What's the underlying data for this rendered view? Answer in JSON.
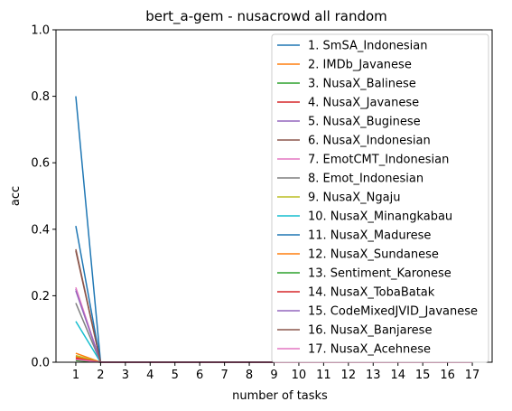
{
  "chart_data": {
    "type": "line",
    "title": "bert_a-gem - nusacrowd all random",
    "xlabel": "number of tasks",
    "ylabel": "acc",
    "x": [
      1,
      2,
      3,
      4,
      5,
      6,
      7,
      8,
      9,
      10,
      11,
      12,
      13,
      14,
      15,
      16,
      17
    ],
    "xlim": [
      0.2,
      17.8
    ],
    "ylim": [
      0,
      1
    ],
    "yticks": [
      "0.0",
      "0.2",
      "0.4",
      "0.6",
      "0.8",
      "1.0"
    ],
    "xticks": [
      "1",
      "2",
      "3",
      "4",
      "5",
      "6",
      "7",
      "8",
      "9",
      "10",
      "11",
      "12",
      "13",
      "14",
      "15",
      "16",
      "17"
    ],
    "legend_position": "upper-right",
    "series": [
      {
        "name": "1. SmSA_Indonesian",
        "color": "#1f77b4",
        "values": [
          0.8,
          0,
          0,
          0,
          0,
          0,
          0,
          0,
          0,
          0,
          0,
          0,
          0,
          0,
          0,
          0,
          0
        ]
      },
      {
        "name": "2. IMDb_Javanese",
        "color": "#ff7f0e",
        "values": [
          0.027,
          0,
          0,
          0,
          0,
          0,
          0,
          0,
          0,
          0,
          0,
          0,
          0,
          0,
          0,
          0,
          0
        ]
      },
      {
        "name": "3. NusaX_Balinese",
        "color": "#2ca02c",
        "values": [
          0.01,
          0,
          0,
          0,
          0,
          0,
          0,
          0,
          0,
          0,
          0,
          0,
          0,
          0,
          0,
          0,
          0
        ]
      },
      {
        "name": "4. NusaX_Javanese",
        "color": "#d62728",
        "values": [
          0.017,
          0,
          0,
          0,
          0,
          0,
          0,
          0,
          0,
          0,
          0,
          0,
          0,
          0,
          0,
          0,
          0
        ]
      },
      {
        "name": "5. NusaX_Buginese",
        "color": "#9467bd",
        "values": [
          0.22,
          0,
          0,
          0,
          0,
          0,
          0,
          0,
          0,
          0,
          0,
          0,
          0,
          0,
          0,
          0,
          0
        ]
      },
      {
        "name": "6. NusaX_Indonesian",
        "color": "#8c564b",
        "values": [
          0.34,
          0,
          0,
          0,
          0,
          0,
          0,
          0,
          0,
          0,
          0,
          0,
          0,
          0,
          0,
          0,
          0
        ]
      },
      {
        "name": "7. EmotCMT_Indonesian",
        "color": "#e377c2",
        "values": [
          0.225,
          0,
          0,
          0,
          0,
          0,
          0,
          0,
          0,
          0,
          0,
          0,
          0,
          0,
          0,
          0,
          0
        ]
      },
      {
        "name": "8. Emot_Indonesian",
        "color": "#7f7f7f",
        "values": [
          0.178,
          0,
          0,
          0,
          0,
          0,
          0,
          0,
          0,
          0,
          0,
          0,
          0,
          0,
          0,
          0,
          0
        ]
      },
      {
        "name": "9. NusaX_Ngaju",
        "color": "#bcbd22",
        "values": [
          0.02,
          0,
          0,
          0,
          0,
          0,
          0,
          0,
          0,
          0,
          0,
          0,
          0,
          0,
          0,
          0,
          0
        ]
      },
      {
        "name": "10. NusaX_Minangkabau",
        "color": "#17becf",
        "values": [
          0.123,
          0,
          0,
          0,
          0,
          0,
          0,
          0,
          0,
          0,
          0,
          0,
          0,
          0,
          0,
          0,
          0
        ]
      },
      {
        "name": "11. NusaX_Madurese",
        "color": "#1f77b4",
        "values": [
          0.41,
          0,
          0,
          0,
          0,
          0,
          0,
          0,
          0,
          0,
          0,
          0,
          0,
          0,
          0,
          0,
          0
        ]
      },
      {
        "name": "12. NusaX_Sundanese",
        "color": "#ff7f0e",
        "values": [
          0.015,
          0,
          0,
          0,
          0,
          0,
          0,
          0,
          0,
          0,
          0,
          0,
          0,
          0,
          0,
          0,
          0
        ]
      },
      {
        "name": "13. Sentiment_Karonese",
        "color": "#2ca02c",
        "values": [
          0.005,
          0,
          0,
          0,
          0,
          0,
          0,
          0,
          0,
          0,
          0,
          0,
          0,
          0,
          0,
          0,
          0
        ]
      },
      {
        "name": "14. NusaX_TobaBatak",
        "color": "#d62728",
        "values": [
          0.012,
          0,
          0,
          0,
          0,
          0,
          0,
          0,
          0,
          0,
          0,
          0,
          0,
          0,
          0,
          0,
          0
        ]
      },
      {
        "name": "15. CodeMixedJVID_Javanese",
        "color": "#9467bd",
        "values": [
          0.215,
          0,
          0,
          0,
          0,
          0,
          0,
          0,
          0,
          0,
          0,
          0,
          0,
          0,
          0,
          0,
          0
        ]
      },
      {
        "name": "16. NusaX_Banjarese",
        "color": "#8c564b",
        "values": [
          0.335,
          0,
          0,
          0,
          0,
          0,
          0,
          0,
          0,
          0,
          0,
          0,
          0,
          0,
          0,
          0,
          0
        ]
      },
      {
        "name": "17. NusaX_Acehnese",
        "color": "#e377c2",
        "values": [
          0.008,
          0,
          0,
          0,
          0,
          0,
          0,
          0,
          0,
          0,
          0,
          0,
          0,
          0,
          0,
          0,
          0
        ]
      }
    ]
  }
}
